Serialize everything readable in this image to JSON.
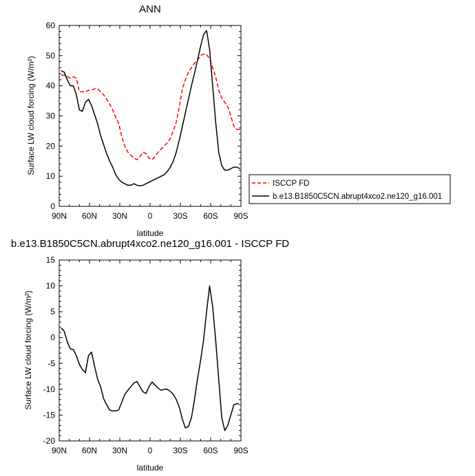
{
  "chart_data": [
    {
      "type": "line",
      "title": "ANN",
      "xlabel": "latitude",
      "ylabel": "Surface LW cloud forcing (W/m²)",
      "xlim": [
        90,
        -90
      ],
      "ylim": [
        0,
        60
      ],
      "xticks": [
        90,
        60,
        30,
        0,
        -30,
        -60,
        -90
      ],
      "xticklabels": [
        "90N",
        "60N",
        "30N",
        "0",
        "30S",
        "60S",
        "90S"
      ],
      "yticks": [
        0,
        10,
        20,
        30,
        40,
        50,
        60
      ],
      "yticklabels": [
        "0",
        "10",
        "20",
        "30",
        "40",
        "50",
        "60"
      ],
      "legend": "right",
      "series": [
        {
          "name": "ISCCP FD",
          "color": "#ff0000",
          "dash": true,
          "x": [
            88,
            85,
            82,
            79,
            76,
            73,
            70,
            67,
            64,
            61,
            58,
            55,
            52,
            49,
            46,
            43,
            40,
            37,
            34,
            31,
            28,
            25,
            22,
            19,
            16,
            13,
            10,
            7,
            4,
            1,
            -2,
            -5,
            -8,
            -11,
            -14,
            -17,
            -20,
            -23,
            -26,
            -29,
            -32,
            -35,
            -38,
            -41,
            -44,
            -47,
            -50,
            -53,
            -56,
            -59,
            -62,
            -65,
            -68,
            -71,
            -74,
            -77,
            -80,
            -83,
            -86,
            -89
          ],
          "y": [
            43.5,
            43.5,
            43.0,
            42.5,
            43.0,
            42.5,
            38.0,
            38.0,
            38.0,
            38.5,
            38.5,
            39.0,
            39.0,
            38.0,
            37.0,
            35.5,
            34.0,
            32.0,
            29.5,
            27.5,
            23.0,
            20.0,
            18.0,
            17.0,
            16.0,
            15.5,
            16.5,
            18.0,
            17.5,
            16.0,
            15.5,
            16.5,
            18.0,
            19.0,
            20.0,
            21.0,
            22.5,
            25.0,
            28.0,
            33.0,
            39.0,
            42.0,
            44.5,
            46.0,
            47.5,
            48.5,
            50.0,
            50.5,
            50.3,
            49.0,
            46.0,
            43.0,
            38.5,
            36.0,
            34.5,
            33.0,
            30.0,
            26.5,
            25.5,
            25.5
          ]
        },
        {
          "name": "b.e13.B1850C5CN.abrupt4xco2.ne120_g16.001",
          "color": "#000000",
          "dash": false,
          "x": [
            88,
            85,
            82,
            79,
            76,
            73,
            70,
            67,
            64,
            61,
            58,
            55,
            52,
            49,
            46,
            43,
            40,
            37,
            34,
            31,
            28,
            25,
            22,
            19,
            16,
            13,
            10,
            7,
            4,
            1,
            -2,
            -5,
            -8,
            -11,
            -14,
            -17,
            -20,
            -23,
            -26,
            -29,
            -32,
            -35,
            -38,
            -41,
            -44,
            -47,
            -50,
            -53,
            -56,
            -59,
            -62,
            -65,
            -68,
            -71,
            -74,
            -77,
            -80,
            -83,
            -86,
            -89
          ],
          "y": [
            45.0,
            44.5,
            42.0,
            40.0,
            40.0,
            37.0,
            32.0,
            31.5,
            34.5,
            35.5,
            33.5,
            30.5,
            27.5,
            23.5,
            20.5,
            17.5,
            15.0,
            13.0,
            10.5,
            9.0,
            8.0,
            7.5,
            7.0,
            7.0,
            7.5,
            7.0,
            6.8,
            7.0,
            7.5,
            8.0,
            8.5,
            9.0,
            9.5,
            10.0,
            10.5,
            11.5,
            13.0,
            15.0,
            18.0,
            22.0,
            26.5,
            31.0,
            35.5,
            40.0,
            44.0,
            48.5,
            53.0,
            57.0,
            58.3,
            52.0,
            40.0,
            28.0,
            18.0,
            13.5,
            12.0,
            12.0,
            12.5,
            13.0,
            13.0,
            12.5
          ]
        }
      ]
    },
    {
      "type": "line",
      "title": "b.e13.B1850C5CN.abrupt4xco2.ne120_g16.001 - ISCCP FD",
      "xlabel": "latitude",
      "ylabel": "Surface LW cloud forcing (W/m²)",
      "xlim": [
        90,
        -90
      ],
      "ylim": [
        -20,
        15
      ],
      "xticks": [
        90,
        60,
        30,
        0,
        -30,
        -60,
        -90
      ],
      "xticklabels": [
        "90N",
        "60N",
        "30N",
        "0",
        "30S",
        "60S",
        "90S"
      ],
      "yticks": [
        -20,
        -15,
        -10,
        -5,
        0,
        5,
        10,
        15
      ],
      "yticklabels": [
        "-20",
        "-15",
        "-10",
        "-5",
        "0",
        "5",
        "10",
        "15"
      ],
      "series": [
        {
          "name": "",
          "color": "#000000",
          "dash": false,
          "x": [
            88,
            85,
            82,
            79,
            76,
            73,
            70,
            67,
            64,
            61,
            58,
            55,
            52,
            49,
            46,
            43,
            40,
            37,
            34,
            31,
            28,
            25,
            22,
            19,
            16,
            13,
            10,
            7,
            4,
            1,
            -2,
            -5,
            -8,
            -11,
            -14,
            -17,
            -20,
            -23,
            -26,
            -29,
            -32,
            -35,
            -38,
            -41,
            -44,
            -47,
            -50,
            -53,
            -56,
            -59,
            -62,
            -65,
            -68,
            -71,
            -74,
            -77,
            -80,
            -83,
            -86,
            -88
          ],
          "y": [
            1.8,
            1.2,
            -0.8,
            -2.2,
            -2.3,
            -3.5,
            -5.2,
            -6.2,
            -6.8,
            -3.5,
            -2.8,
            -5.5,
            -8.0,
            -9.5,
            -11.8,
            -13.0,
            -14.0,
            -14.2,
            -14.2,
            -14.0,
            -12.5,
            -11.0,
            -10.2,
            -9.5,
            -8.8,
            -8.5,
            -9.5,
            -10.5,
            -10.8,
            -9.5,
            -8.6,
            -9.2,
            -9.8,
            -10.2,
            -10.0,
            -10.0,
            -10.4,
            -11.0,
            -12.0,
            -13.5,
            -15.8,
            -17.5,
            -17.2,
            -15.5,
            -12.0,
            -8.0,
            -4.5,
            -0.5,
            5.0,
            10.0,
            6.0,
            -0.5,
            -8.0,
            -15.5,
            -18.0,
            -17.0,
            -15.0,
            -13.0,
            -12.8,
            -12.8
          ]
        }
      ]
    }
  ]
}
